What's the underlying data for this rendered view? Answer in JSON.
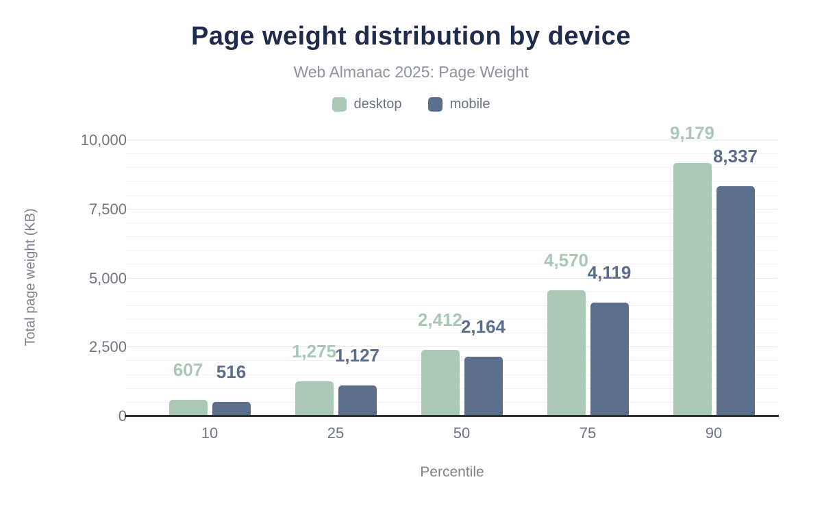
{
  "header": {
    "title": "Page weight distribution by device",
    "subtitle": "Web Almanac 2025: Page Weight"
  },
  "chart_data": {
    "type": "bar",
    "title": "Page weight distribution by device",
    "subtitle": "Web Almanac 2025: Page Weight",
    "categories": [
      "10",
      "25",
      "50",
      "75",
      "90"
    ],
    "series": [
      {
        "name": "desktop",
        "color": "#a9c9b6",
        "values": [
          607,
          1275,
          2412,
          4570,
          9179
        ],
        "labels": [
          "607",
          "1,275",
          "2,412",
          "4,570",
          "9,179"
        ]
      },
      {
        "name": "mobile",
        "color": "#5b6e8d",
        "values": [
          516,
          1127,
          2164,
          4119,
          8337
        ],
        "labels": [
          "516",
          "1,127",
          "2,164",
          "4,119",
          "8,337"
        ]
      }
    ],
    "xlabel": "Percentile",
    "ylabel": "Total page weight (KB)",
    "ylim": [
      0,
      10000
    ],
    "yticks": [
      {
        "value": 0,
        "label": "0"
      },
      {
        "value": 2500,
        "label": "2,500"
      },
      {
        "value": 5000,
        "label": "5,000"
      },
      {
        "value": 7500,
        "label": "7,500"
      },
      {
        "value": 10000,
        "label": "10,000"
      }
    ],
    "minor_grid_step": 500,
    "major_grid_step": 2500,
    "grid": true,
    "legend_position": "top",
    "bar_label_position": "above"
  },
  "colors": {
    "title": "#1f2b4d",
    "subtitle": "#8d939d",
    "legend_text": "#6b7280",
    "tick_text": "#6f7580",
    "axis_title_text": "#7d838d",
    "axis_line": "#2e2e2e",
    "grid_major": "#e8e8e8",
    "grid_minor": "#f4f4f4",
    "background": "#ffffff",
    "desktop": "#a9c9b6",
    "mobile": "#5b6e8d"
  }
}
